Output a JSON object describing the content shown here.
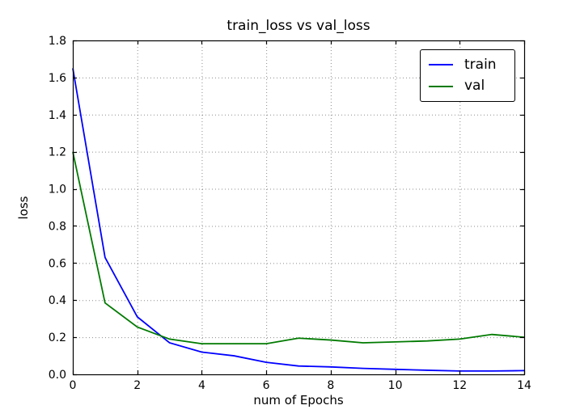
{
  "figure": {
    "background": "#ffffff",
    "axes_edge_color": "#000000",
    "grid_color": "#000000"
  },
  "chart_data": {
    "type": "line",
    "title": "train_loss vs val_loss",
    "xlabel": "num of Epochs",
    "ylabel": "loss",
    "x": [
      0,
      1,
      2,
      3,
      4,
      5,
      6,
      7,
      8,
      9,
      10,
      11,
      12,
      13,
      14
    ],
    "series": [
      {
        "name": "train",
        "color": "#0000ff",
        "values": [
          1.65,
          0.63,
          0.31,
          0.17,
          0.12,
          0.1,
          0.065,
          0.045,
          0.04,
          0.032,
          0.027,
          0.022,
          0.018,
          0.018,
          0.02
        ]
      },
      {
        "name": "val",
        "color": "#007a00",
        "values": [
          1.2,
          0.385,
          0.255,
          0.19,
          0.165,
          0.165,
          0.165,
          0.195,
          0.185,
          0.17,
          0.175,
          0.18,
          0.19,
          0.215,
          0.2
        ]
      }
    ],
    "xlim": [
      0,
      14
    ],
    "ylim": [
      0.0,
      1.8
    ],
    "xticks": [
      0,
      2,
      4,
      6,
      8,
      10,
      12,
      14
    ],
    "xtick_labels": [
      "0",
      "2",
      "4",
      "6",
      "8",
      "10",
      "12",
      "14"
    ],
    "yticks": [
      0.0,
      0.2,
      0.4,
      0.6,
      0.8,
      1.0,
      1.2,
      1.4,
      1.6,
      1.8
    ],
    "ytick_labels": [
      "0.0",
      "0.2",
      "0.4",
      "0.6",
      "0.8",
      "1.0",
      "1.2",
      "1.4",
      "1.6",
      "1.8"
    ],
    "grid": true,
    "grid_linestyle": "dotted",
    "legend_position": "upper right"
  },
  "legend": {
    "items": [
      {
        "label": "train",
        "color": "#0000ff"
      },
      {
        "label": "val",
        "color": "#007a00"
      }
    ]
  }
}
